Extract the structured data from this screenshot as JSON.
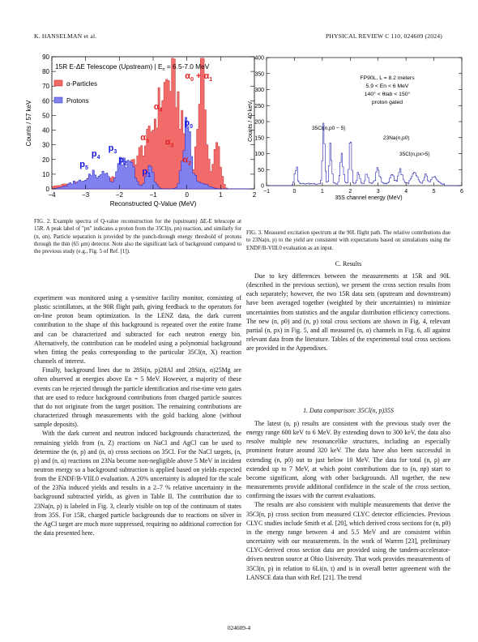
{
  "header": {
    "left": "K. HANSELMAN et al.",
    "right": "PHYSICAL REVIEW C 110, 024609 (2024)"
  },
  "fig2": {
    "title": "15R E-ΔE Telescope (Upstream) | E",
    "title_range": "n",
    "title_tail": " = 6.5-7.0 MeV",
    "ylabel": "Counts / 57 keV",
    "xlabel": "Reconstructed Q-Value (MeV)",
    "legend": [
      "α-Particles",
      "Protons"
    ],
    "xticks": [
      "−4",
      "−3",
      "−2",
      "−1",
      "0",
      "1",
      "2"
    ],
    "yticks": [
      "0",
      "10",
      "20",
      "30",
      "40",
      "50",
      "60",
      "70",
      "80",
      "90"
    ],
    "peak_labels": {
      "a0a1": "α0 + α1",
      "a4": "α4",
      "a5": "α5",
      "a3": "α3",
      "a2": "α2",
      "p0": "p0",
      "p1": "p1",
      "p2": "p2",
      "p3": "p3",
      "p4": "p4",
      "p5": "p5"
    },
    "colors": {
      "alpha": "#f26b6b",
      "proton": "#8080ee",
      "alpha_label": "#e02020",
      "proton_label": "#1515e0"
    },
    "caption": "FIG. 2. Example spectra of Q-value reconstruction for the (upstream) ΔE-E telescope at 15R. A peak label of \"pn\" indicates a proton from the 35Cl(n, pn) reaction, and similarly for (n, αn). Particle separation is provided by the punch-through energy threshold of protons through the thin (65 μm) detector. Note also the significant lack of background compared to the previous study (e.g., Fig. 5 of Ref. [1])."
  },
  "fig3": {
    "ylabel": "Counts / 40 keV",
    "xlabel": "35S channel energy (MeV)",
    "xticks": [
      "−1",
      "0",
      "1",
      "2",
      "3",
      "4",
      "5",
      "6"
    ],
    "yticks": [
      "0",
      "50",
      "100",
      "150",
      "200",
      "250",
      "300",
      "350",
      "400"
    ],
    "info": [
      "FP90L, L = 8.2 meters",
      "5.9 < En < 6 MeV",
      "140° < θlab < 150°",
      "proton gated"
    ],
    "labels": {
      "cl_p05": "35Cl(n,p0 − 5)",
      "na_p0": "23Na(n,p0)",
      "cl_px5": "35Cl(n,px>5)"
    },
    "caption": "FIG. 3. Measured excitation spectrum at the 90L flight path. The relative contributions due to 23Na(n, p) to the yield are consistent with expectations based on simulations using the ENDF/B-VIII.0 evaluation as an input."
  },
  "left_col": [
    "experiment was monitored using a γ-sensitive facility monitor, consisting of plastic scintillators, at the 90R flight path, giving feedback to the operators for on-line proton beam optimization. In the LENZ data, the dark current contribution to the shape of this background is repeated over the entire frame and can be characterized and subtracted for each neutron energy bin. Alternatively, the contribution can be modeled using a polynomial background when fitting the peaks corresponding to the particular 35Cl(n, X) reaction channels of interest.",
    "Finally, background lines due to 28Si(n, p)28Al and 28Si(n, α)25Mg are often observed at energies above En = 5 MeV. However, a majority of these events can be rejected through the particle identification and rise-time veto gates that are used to reduce background contributions from charged particle sources that do not originate from the target position. The remaining contributions are characterized through measurements with the gold backing alone (without sample deposits).",
    "With the dark current and neutron induced backgrounds characterized, the remaining yields from (n, Z) reactions on NaCl and AgCl can be used to determine the (n, p) and (n, α) cross sections on 35Cl. For the NaCl targets, (n, p) and (n, α) reactions on 23Na become non-negligible above 5 MeV in incident neutron energy so a background subtraction is applied based on yields expected from the ENDF/B-VIII.0 evaluation. A 20% uncertainty is adopted for the scale of the 23Na induced yields and results in a 2–7 % relative uncertainty in the background subtracted yields, as given in Table II. The contribution due to 23Na(n, p) is labeled in Fig. 3, clearly visible on top of the continuum of states from 35S. For 15R, charged particle backgrounds due to reactions on silver in the AgCl target are much more suppressed, requiring no additional correction for the data presented here."
  ],
  "section_title": "C. Results",
  "right_col_a": [
    "Due to key differences between the measurements at 15R and 90L (described in the previous section), we present the cross section results from each separately; however, the two 15R data sets (upstream and downstream) have been averaged together (weighted by their uncertainties) to minimize uncertainties from statistics and the angular distribution efficiency corrections. The new (n, p0) and (n, p) total cross sections are shown in Fig. 4, relevant partial (n, px) in Fig. 5, and all measured (n, α) channels in Fig. 6, all against relevant data from the literature. Tables of the experimental total cross sections are provided in the Appendixes."
  ],
  "subsection_title": "1. Data comparison: 35Cl(n, p)35S",
  "right_col_b": [
    "The latest (n, p) results are consistent with the previous study over the energy range 600 keV to 6 MeV. By extending down to 300 keV, the data also resolve multiple new resonancelike structures, including an especially prominent feature around 320 keV. The data have also been successful in extending (n, p0) out to just below 10 MeV. The data for total (n, p) are extended up to 7 MeV, at which point contributions due to (n, np) start to become significant, along with other backgrounds. All together, the new measurements provide additional confidence in the scale of the cross section, confirming the issues with the current evaluations.",
    "The results are also consistent with multiple measurements that derive the 35Cl(n, p) cross section from measured CLYC detector efficiencies. Previous CLYC studies include Smith et al. [20], which derived cross sections for (n, p0) in the energy range between 4 and 5.5 MeV and are consistent within uncertainty with our measurements. In the work of Warren [23], preliminary CLYC-derived cross section data are provided using the tandem-accelerator-driven neutron source at Ohio University. That work provides measurements of 35Cl(n, p) in relation to 6Li(n, t) and is in overall better agreement with the LANSCE data than with Ref. [21]. The trend"
  ],
  "footer": "024609-4"
}
